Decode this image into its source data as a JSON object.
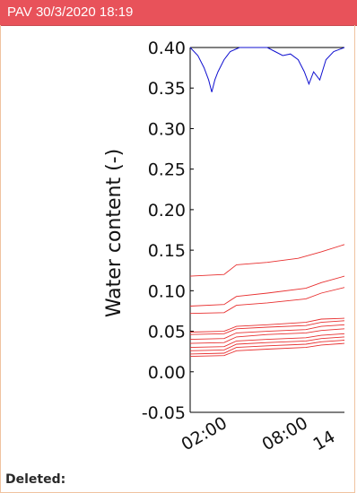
{
  "header": {
    "title": "PAV 30/3/2020 18:19"
  },
  "footer": {
    "deleted_label": "Deleted:"
  },
  "colors": {
    "header_bg": "#e8525a",
    "blue_series": "#1010d0",
    "red_series": "#e83030"
  },
  "chart_data": {
    "type": "line",
    "title": "",
    "ylabel": "Water content (-)",
    "xlabel": "",
    "ylim": [
      -0.05,
      0.4
    ],
    "yticks": [
      "0.40",
      "0.35",
      "0.30",
      "0.25",
      "0.20",
      "0.15",
      "0.10",
      "0.05",
      "0.00",
      "-0.05"
    ],
    "xticks": [
      "02:00",
      "08:00",
      "14"
    ],
    "grid": false,
    "series": [
      {
        "color": "blue",
        "points": [
          [
            0,
            0.4
          ],
          [
            5,
            0.39
          ],
          [
            9,
            0.375
          ],
          [
            12,
            0.36
          ],
          [
            14,
            0.345
          ],
          [
            16,
            0.36
          ],
          [
            18,
            0.37
          ],
          [
            22,
            0.385
          ],
          [
            26,
            0.395
          ],
          [
            32,
            0.4
          ],
          [
            50,
            0.4
          ],
          [
            55,
            0.395
          ],
          [
            60,
            0.39
          ],
          [
            65,
            0.392
          ],
          [
            70,
            0.385
          ],
          [
            74,
            0.37
          ],
          [
            77,
            0.355
          ],
          [
            80,
            0.37
          ],
          [
            84,
            0.36
          ],
          [
            88,
            0.385
          ],
          [
            93,
            0.395
          ],
          [
            100,
            0.4
          ]
        ]
      },
      {
        "color": "red",
        "points": [
          [
            0,
            0.118
          ],
          [
            22,
            0.12
          ],
          [
            30,
            0.132
          ],
          [
            50,
            0.135
          ],
          [
            70,
            0.14
          ],
          [
            85,
            0.148
          ],
          [
            100,
            0.157
          ]
        ]
      },
      {
        "color": "red",
        "points": [
          [
            0,
            0.081
          ],
          [
            22,
            0.083
          ],
          [
            30,
            0.093
          ],
          [
            50,
            0.097
          ],
          [
            75,
            0.103
          ],
          [
            85,
            0.11
          ],
          [
            100,
            0.118
          ]
        ]
      },
      {
        "color": "red",
        "points": [
          [
            0,
            0.072
          ],
          [
            22,
            0.073
          ],
          [
            30,
            0.082
          ],
          [
            50,
            0.085
          ],
          [
            75,
            0.09
          ],
          [
            85,
            0.097
          ],
          [
            100,
            0.104
          ]
        ]
      },
      {
        "color": "red",
        "points": [
          [
            0,
            0.049
          ],
          [
            22,
            0.05
          ],
          [
            30,
            0.056
          ],
          [
            50,
            0.058
          ],
          [
            75,
            0.061
          ],
          [
            85,
            0.065
          ],
          [
            100,
            0.066
          ]
        ]
      },
      {
        "color": "red",
        "points": [
          [
            0,
            0.046
          ],
          [
            22,
            0.047
          ],
          [
            30,
            0.053
          ],
          [
            50,
            0.055
          ],
          [
            75,
            0.057
          ],
          [
            85,
            0.061
          ],
          [
            100,
            0.063
          ]
        ]
      },
      {
        "color": "red",
        "points": [
          [
            0,
            0.04
          ],
          [
            22,
            0.041
          ],
          [
            30,
            0.048
          ],
          [
            50,
            0.05
          ],
          [
            75,
            0.052
          ],
          [
            85,
            0.056
          ],
          [
            100,
            0.058
          ]
        ]
      },
      {
        "color": "red",
        "points": [
          [
            0,
            0.035
          ],
          [
            22,
            0.036
          ],
          [
            30,
            0.043
          ],
          [
            50,
            0.046
          ],
          [
            75,
            0.048
          ],
          [
            85,
            0.051
          ],
          [
            100,
            0.053
          ]
        ]
      },
      {
        "color": "red",
        "points": [
          [
            0,
            0.03
          ],
          [
            22,
            0.031
          ],
          [
            30,
            0.038
          ],
          [
            50,
            0.04
          ],
          [
            75,
            0.042
          ],
          [
            85,
            0.045
          ],
          [
            100,
            0.047
          ]
        ]
      },
      {
        "color": "red",
        "points": [
          [
            0,
            0.026
          ],
          [
            22,
            0.027
          ],
          [
            30,
            0.034
          ],
          [
            50,
            0.036
          ],
          [
            75,
            0.038
          ],
          [
            85,
            0.041
          ],
          [
            100,
            0.043
          ]
        ]
      },
      {
        "color": "red",
        "points": [
          [
            0,
            0.022
          ],
          [
            22,
            0.023
          ],
          [
            30,
            0.03
          ],
          [
            50,
            0.032
          ],
          [
            75,
            0.034
          ],
          [
            85,
            0.037
          ],
          [
            100,
            0.039
          ]
        ]
      },
      {
        "color": "red",
        "points": [
          [
            0,
            0.019
          ],
          [
            22,
            0.02
          ],
          [
            30,
            0.026
          ],
          [
            50,
            0.028
          ],
          [
            75,
            0.03
          ],
          [
            85,
            0.033
          ],
          [
            100,
            0.035
          ]
        ]
      }
    ]
  }
}
